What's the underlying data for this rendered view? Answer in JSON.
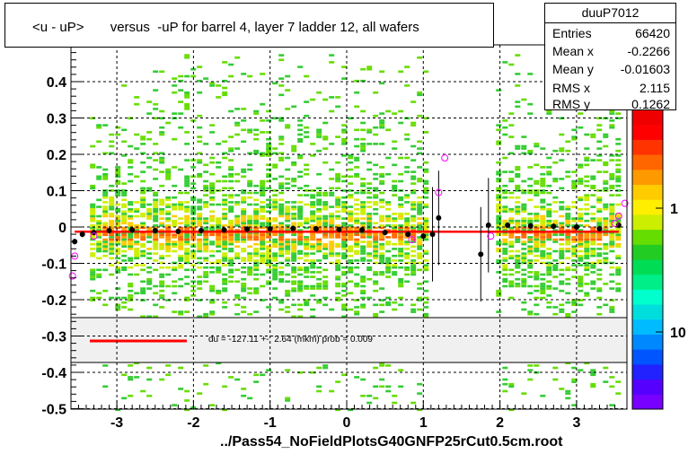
{
  "title": "<u - uP>       versus  -uP for barrel 4, layer 7 ladder 12, all wafers",
  "footer": "../Pass54_NoFieldPlotsG40GNFP25rCut0.5cm.root",
  "stats": {
    "name": "duuP7012",
    "rows": [
      {
        "key": "Entries",
        "value": "66420"
      },
      {
        "key": "Mean x",
        "value": "-0.2266"
      },
      {
        "key": "Mean y",
        "value": "-0.01603"
      },
      {
        "key": "RMS x",
        "value": "2.115"
      },
      {
        "key": "RMS y",
        "value": "0.1262"
      }
    ]
  },
  "fit_legend": "du = -127.11 +-  2.64 (mkm) prob = 0.009",
  "colors": {
    "fit_line": "#ff0000",
    "profile_points": "#000000",
    "open_markers": "#ff00ff",
    "legend_band": "#f0f0f0"
  },
  "chart_data": {
    "type": "heatmap",
    "xlim": [
      -3.6,
      3.65
    ],
    "ylim": [
      -0.5,
      0.5
    ],
    "x_ticks": [
      -3,
      -2,
      -1,
      0,
      1,
      2,
      3
    ],
    "y_ticks": [
      -0.5,
      -0.4,
      -0.3,
      -0.2,
      -0.1,
      0,
      0.1,
      0.2,
      0.3,
      0.4
    ],
    "x_tick_labels": [
      "-3",
      "-2",
      "-1",
      "0",
      "1",
      "2",
      "3"
    ],
    "y_tick_labels": [
      "-0.5",
      "-0.4",
      "-0.3",
      "-0.2",
      "-0.1",
      "0",
      "0.1",
      "0.2",
      "0.3",
      "0.4"
    ],
    "grid": true,
    "z_scale": "log",
    "z_labels": [
      "1",
      "10"
    ],
    "occupied_x_ranges": [
      [
        -3.35,
        1.05
      ],
      [
        1.95,
        3.55
      ]
    ],
    "fit": {
      "y": -0.013,
      "x_from": -3.55,
      "x_to": 3.55
    },
    "profile_points": [
      {
        "x": -3.55,
        "y": -0.04
      },
      {
        "x": -3.45,
        "y": -0.02
      },
      {
        "x": -3.3,
        "y": -0.015
      },
      {
        "x": -3.1,
        "y": -0.01
      },
      {
        "x": -2.8,
        "y": -0.008
      },
      {
        "x": -2.5,
        "y": -0.01
      },
      {
        "x": -2.2,
        "y": -0.012
      },
      {
        "x": -1.9,
        "y": -0.01
      },
      {
        "x": -1.6,
        "y": -0.008
      },
      {
        "x": -1.3,
        "y": -0.006
      },
      {
        "x": -1.0,
        "y": -0.005
      },
      {
        "x": -0.7,
        "y": -0.004
      },
      {
        "x": -0.4,
        "y": -0.005
      },
      {
        "x": -0.1,
        "y": -0.007
      },
      {
        "x": 0.2,
        "y": -0.008
      },
      {
        "x": 0.5,
        "y": -0.015
      },
      {
        "x": 0.8,
        "y": -0.02
      },
      {
        "x": 1.0,
        "y": -0.025
      },
      {
        "x": 1.12,
        "y": -0.02
      },
      {
        "x": 1.2,
        "y": 0.025
      },
      {
        "x": 1.75,
        "y": -0.075
      },
      {
        "x": 1.85,
        "y": 0.005
      },
      {
        "x": 2.1,
        "y": 0.005
      },
      {
        "x": 2.4,
        "y": 0.003
      },
      {
        "x": 2.7,
        "y": 0.002
      },
      {
        "x": 3.0,
        "y": 0.0
      },
      {
        "x": 3.3,
        "y": -0.005
      },
      {
        "x": 3.55,
        "y": 0.005
      }
    ],
    "open_markers": [
      {
        "x": -3.58,
        "y": -0.135
      },
      {
        "x": -3.55,
        "y": -0.08
      },
      {
        "x": -3.3,
        "y": -0.025
      },
      {
        "x": 0.85,
        "y": -0.035
      },
      {
        "x": 1.2,
        "y": 0.095
      },
      {
        "x": 1.28,
        "y": 0.19
      },
      {
        "x": 1.88,
        "y": -0.025
      },
      {
        "x": 3.5,
        "y": 0.01
      },
      {
        "x": 3.55,
        "y": 0.03
      },
      {
        "x": 3.63,
        "y": 0.065
      }
    ]
  }
}
